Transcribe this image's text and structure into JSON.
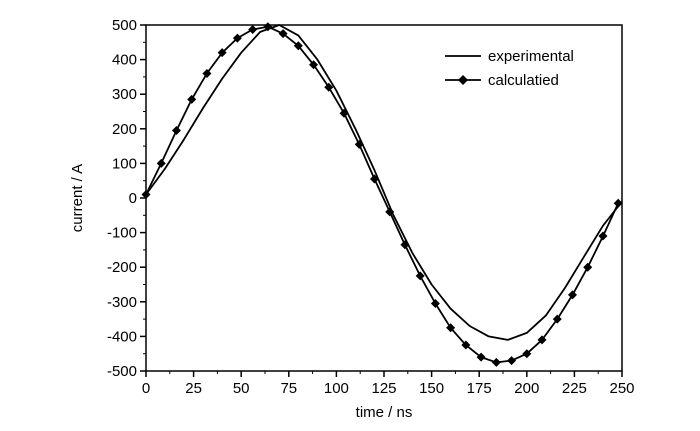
{
  "chart_data": {
    "type": "line",
    "title": "",
    "xlabel": "time / ns",
    "ylabel": "current / A",
    "xlim": [
      0,
      250
    ],
    "ylim": [
      -500,
      500
    ],
    "xticks": [
      0,
      25,
      50,
      75,
      100,
      125,
      150,
      175,
      200,
      225,
      250
    ],
    "yticks": [
      -500,
      -400,
      -300,
      -200,
      -100,
      0,
      100,
      200,
      300,
      400,
      500
    ],
    "grid": false,
    "legend_position": "top-right",
    "series": [
      {
        "name": "experimental",
        "marker": "none",
        "color": "#000000",
        "x": [
          0,
          10,
          20,
          30,
          40,
          50,
          60,
          70,
          80,
          90,
          100,
          110,
          120,
          130,
          140,
          150,
          160,
          170,
          180,
          190,
          200,
          210,
          220,
          230,
          240,
          250
        ],
        "y": [
          10,
          85,
          170,
          260,
          345,
          420,
          480,
          500,
          470,
          400,
          310,
          200,
          80,
          -50,
          -160,
          -250,
          -320,
          -370,
          -400,
          -410,
          -390,
          -340,
          -260,
          -170,
          -80,
          -10
        ]
      },
      {
        "name": "calculatied",
        "marker": "diamond",
        "color": "#000000",
        "x": [
          0,
          8,
          16,
          24,
          32,
          40,
          48,
          56,
          64,
          72,
          80,
          88,
          96,
          104,
          112,
          120,
          128,
          136,
          144,
          152,
          160,
          168,
          176,
          184,
          192,
          200,
          208,
          216,
          224,
          232,
          240,
          248
        ],
        "y": [
          10,
          100,
          195,
          285,
          360,
          420,
          462,
          487,
          495,
          475,
          440,
          385,
          320,
          245,
          155,
          55,
          -40,
          -135,
          -225,
          -305,
          -375,
          -425,
          -460,
          -475,
          -470,
          -450,
          -410,
          -350,
          -280,
          -200,
          -110,
          -15
        ]
      }
    ]
  }
}
